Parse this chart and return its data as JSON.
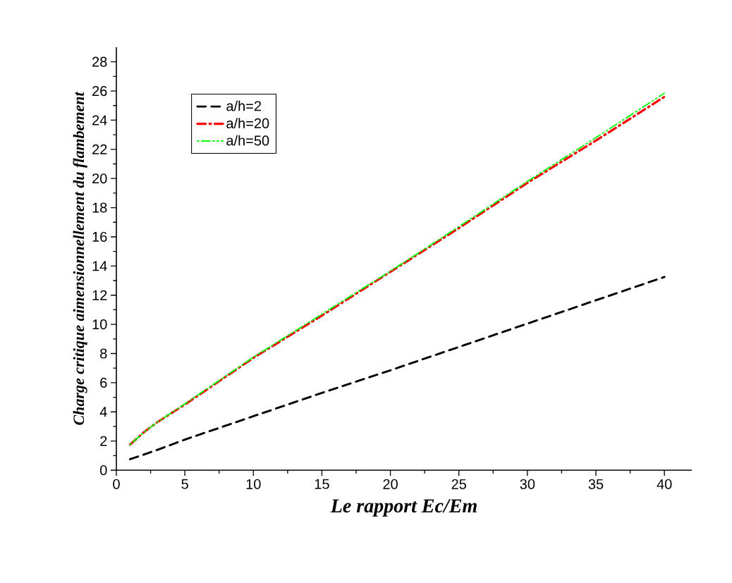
{
  "chart_data": {
    "type": "line",
    "xlabel": "Le rapport Ec/Em",
    "ylabel": "Charge critique aimensionnellement du flambement",
    "x": [
      1,
      2,
      3,
      5,
      10,
      15,
      20,
      25,
      30,
      35,
      40
    ],
    "series": [
      {
        "name": "a/h=2",
        "color": "#000000",
        "line_style": "dashed",
        "values": [
          0.75,
          1.07,
          1.4,
          2.1,
          3.7,
          5.3,
          6.85,
          8.45,
          10.05,
          11.65,
          13.25
        ]
      },
      {
        "name": "a/h=20",
        "color": "#ff0000",
        "line_style": "dashdot",
        "values": [
          1.75,
          2.6,
          3.3,
          4.5,
          7.7,
          10.6,
          13.6,
          16.6,
          19.7,
          22.6,
          25.6
        ]
      },
      {
        "name": "a/h=50",
        "color": "#00ff00",
        "line_style": "dashdotdot",
        "values": [
          1.75,
          2.6,
          3.3,
          4.55,
          7.75,
          10.7,
          13.65,
          16.7,
          19.8,
          22.8,
          25.85
        ]
      }
    ],
    "xlim": [
      0,
      42
    ],
    "ylim": [
      0,
      29
    ],
    "xticks": [
      0,
      5,
      10,
      15,
      20,
      25,
      30,
      35,
      40
    ],
    "yticks": [
      0,
      2,
      4,
      6,
      8,
      10,
      12,
      14,
      16,
      18,
      20,
      22,
      24,
      26,
      28
    ],
    "grid": false,
    "legend": "top left",
    "marker": "none"
  }
}
